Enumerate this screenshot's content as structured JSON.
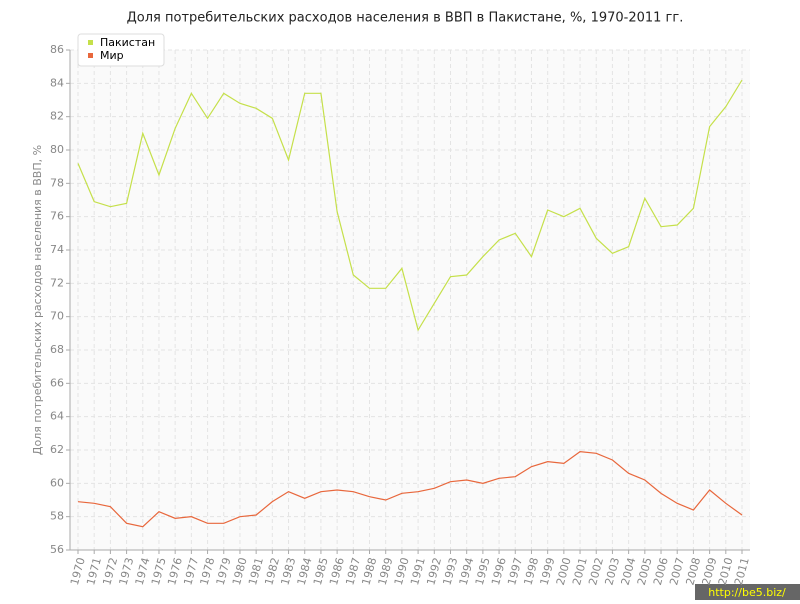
{
  "chart_data": {
    "type": "line",
    "title": "Доля потребительских расходов населения в ВВП в Пакистане, %, 1970-2011 гг.",
    "y_label": "Доля потребительских расходов населения в ВВП, %",
    "categories": [
      "1970",
      "1971",
      "1972",
      "1973",
      "1974",
      "1975",
      "1976",
      "1977",
      "1978",
      "1979",
      "1980",
      "1981",
      "1982",
      "1983",
      "1984",
      "1985",
      "1986",
      "1987",
      "1988",
      "1989",
      "1990",
      "1991",
      "1992",
      "1993",
      "1994",
      "1995",
      "1996",
      "1997",
      "1998",
      "1999",
      "2000",
      "2001",
      "2002",
      "2003",
      "2004",
      "2005",
      "2006",
      "2007",
      "2008",
      "2009",
      "2010",
      "2011"
    ],
    "series": [
      {
        "name": "Пакистан",
        "color": "#c5e04a",
        "values": [
          79.2,
          76.9,
          76.6,
          76.8,
          81.0,
          78.5,
          81.3,
          83.4,
          81.9,
          83.4,
          82.8,
          82.5,
          81.9,
          79.4,
          83.4,
          83.4,
          76.3,
          72.5,
          71.7,
          71.7,
          72.9,
          69.2,
          70.8,
          72.4,
          72.5,
          73.6,
          74.6,
          75.0,
          73.6,
          76.4,
          76.0,
          76.5,
          74.7,
          73.8,
          74.2,
          77.1,
          75.4,
          75.5,
          76.5,
          81.4,
          82.6,
          84.2
        ]
      },
      {
        "name": "Мир",
        "color": "#e8673c",
        "values": [
          58.9,
          58.8,
          58.6,
          57.6,
          57.4,
          58.3,
          57.9,
          58.0,
          57.6,
          57.6,
          58.0,
          58.1,
          58.9,
          59.5,
          59.1,
          59.5,
          59.6,
          59.5,
          59.2,
          59.0,
          59.4,
          59.5,
          59.7,
          60.1,
          60.2,
          60.0,
          60.3,
          60.4,
          61.0,
          61.3,
          61.2,
          61.9,
          61.8,
          61.4,
          60.6,
          60.2,
          59.4,
          58.8,
          58.4,
          59.6,
          58.8,
          58.1
        ]
      }
    ],
    "ylim": [
      56,
      86
    ],
    "yticks": [
      56,
      58,
      60,
      62,
      64,
      66,
      68,
      70,
      72,
      74,
      76,
      78,
      80,
      82,
      84,
      86
    ],
    "grid": true,
    "legend": "top-left",
    "watermark": "http://be5.biz/"
  }
}
